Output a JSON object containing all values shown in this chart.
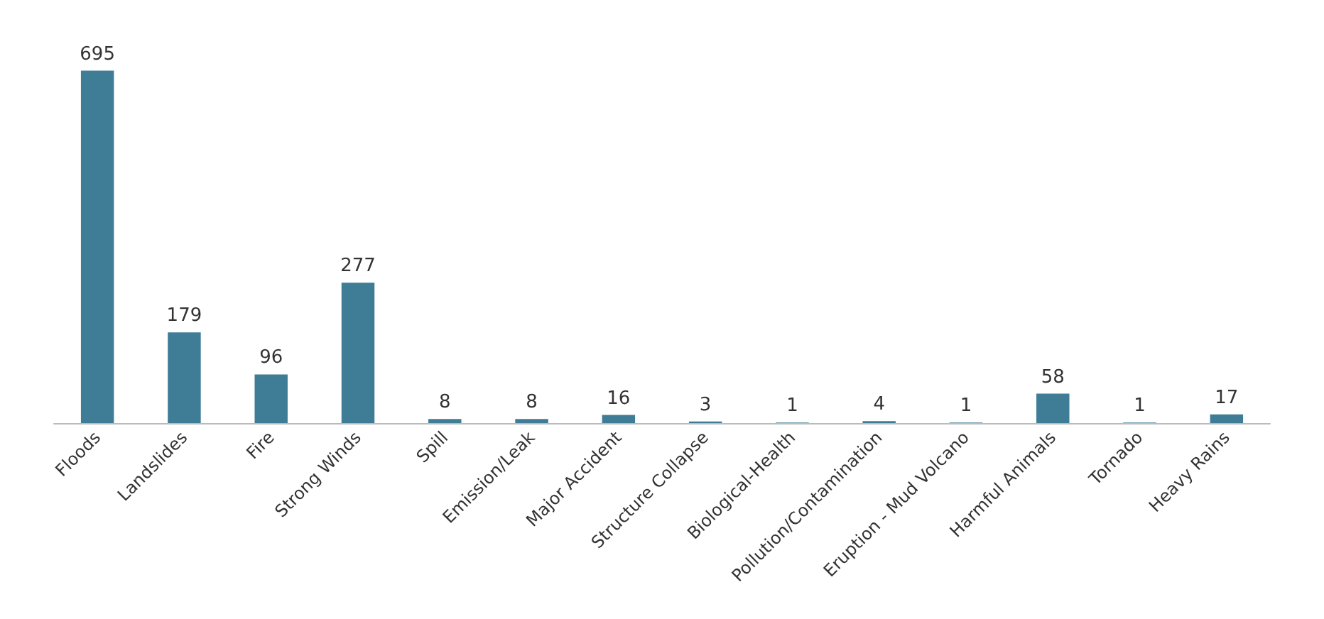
{
  "chart_data": {
    "type": "bar",
    "categories": [
      "Floods",
      "Landslides",
      "Fire",
      "Strong Winds",
      "Spill",
      "Emission/Leak",
      "Major Accident",
      "Structure Collapse",
      "Biological-Health",
      "Pollution/Contamination",
      "Eruption - Mud Volcano",
      "Harmful Animals",
      "Tornado",
      "Heavy Rains"
    ],
    "values": [
      695,
      179,
      96,
      277,
      8,
      8,
      16,
      3,
      1,
      4,
      1,
      58,
      1,
      17
    ],
    "color": "#3f7d97",
    "data_labels": true
  }
}
